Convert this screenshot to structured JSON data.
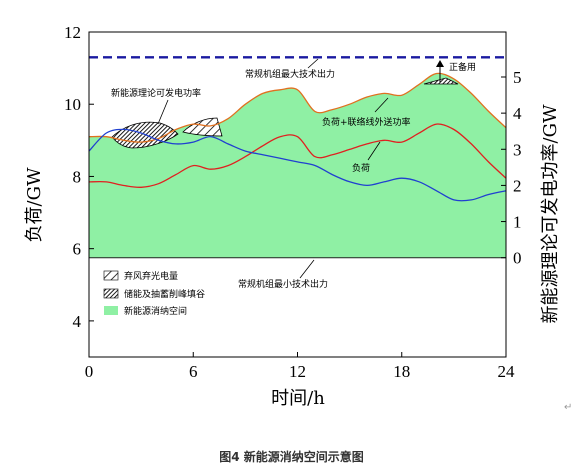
{
  "caption": "图4 新能源消纳空间示意图",
  "caret_mark": "↵",
  "chart_data": {
    "type": "line",
    "xlabel": "时间/h",
    "ylabel": "负荷/GW",
    "y2label": "新能源理论可发电功率/GW",
    "xlim": [
      0,
      24
    ],
    "ylim": [
      3,
      12
    ],
    "y2lim": [
      0,
      5.6
    ],
    "x_ticks": [
      0,
      6,
      12,
      18,
      24
    ],
    "y_ticks": [
      4,
      6,
      8,
      10,
      12
    ],
    "y2_ticks": [
      0,
      1,
      2,
      3,
      4,
      5
    ],
    "levels": {
      "max_output": 11.3,
      "min_output": 5.75
    },
    "series": [
      {
        "name": "负荷",
        "color": "#e02020",
        "x": [
          0,
          1,
          2,
          3,
          4,
          5,
          6,
          7,
          8,
          9,
          10,
          11,
          12,
          13,
          14,
          15,
          16,
          17,
          18,
          19,
          20,
          21,
          22,
          23,
          24
        ],
        "y": [
          7.85,
          7.85,
          7.75,
          7.7,
          7.8,
          8.05,
          8.3,
          8.2,
          8.3,
          8.55,
          8.85,
          9.1,
          9.1,
          8.55,
          8.6,
          8.75,
          8.9,
          9.0,
          8.95,
          9.2,
          9.45,
          9.3,
          8.9,
          8.4,
          7.95
        ]
      },
      {
        "name": "负荷+联络线外送功率",
        "color": "#e07020",
        "x": [
          0,
          1,
          2,
          3,
          4,
          5,
          6,
          7,
          8,
          9,
          10,
          11,
          12,
          13,
          14,
          15,
          16,
          17,
          18,
          19,
          20,
          21,
          22,
          23,
          24
        ],
        "y": [
          9.1,
          9.1,
          9.0,
          8.95,
          9.05,
          9.3,
          9.45,
          9.4,
          9.6,
          10.0,
          10.3,
          10.4,
          10.4,
          9.8,
          9.85,
          10.0,
          10.2,
          10.3,
          10.25,
          10.55,
          10.85,
          10.7,
          10.3,
          9.8,
          9.35
        ]
      },
      {
        "name": "新能源理论可发电功率",
        "axis": "y2",
        "color": "#2040d0",
        "x": [
          0,
          1,
          2,
          3,
          4,
          5,
          6,
          7,
          8,
          9,
          10,
          11,
          12,
          13,
          14,
          15,
          16,
          17,
          18,
          19,
          20,
          21,
          22,
          23,
          24
        ],
        "y": [
          2.95,
          3.45,
          3.55,
          3.45,
          3.25,
          3.15,
          3.2,
          3.35,
          3.15,
          2.95,
          2.85,
          2.75,
          2.65,
          2.55,
          2.3,
          2.1,
          2.0,
          2.1,
          2.2,
          2.1,
          1.85,
          1.6,
          1.6,
          1.75,
          1.85
        ]
      }
    ],
    "annotations": [
      {
        "text": "常规机组最大技术出力"
      },
      {
        "text": "新能源理论可发电功率"
      },
      {
        "text": "负荷+联络线外送功率"
      },
      {
        "text": "负荷"
      },
      {
        "text": "正备用"
      },
      {
        "text": "常规机组最小技术出力"
      }
    ],
    "legend": {
      "position": "left-lower",
      "entries": [
        {
          "label": "弃风弃光电量",
          "pattern": "hatch-light"
        },
        {
          "label": "储能及抽蓄削峰填谷",
          "pattern": "hatch-dense"
        },
        {
          "label": "新能源消纳空间",
          "color": "#8ff0a4"
        }
      ]
    }
  }
}
